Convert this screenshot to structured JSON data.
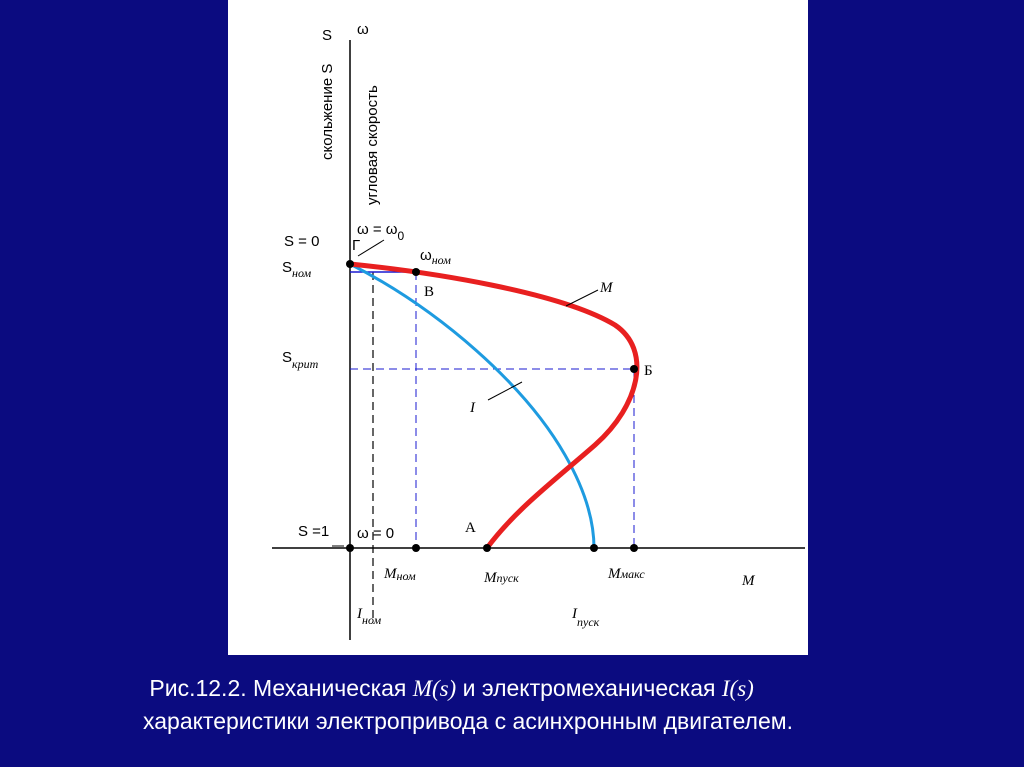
{
  "axes": {
    "s_axis": "S",
    "omega_axis": "ω",
    "s_axis_name": "скольжение S",
    "omega_axis_name": "угловая скорость",
    "m_axis": "M"
  },
  "labels": {
    "omega0": {
      "text": "ω = ω",
      "sub": "0"
    },
    "s0": "S = 0",
    "g": "Г",
    "omega_nom": {
      "text": "ω",
      "sub": "ном"
    },
    "s_nom": {
      "text": "S",
      "sub": "ном"
    },
    "v": "В",
    "curve_m": "M",
    "s_krit": {
      "text": "S",
      "sub": "крит"
    },
    "b": "Б",
    "curve_i": "I",
    "s1": "S =1",
    "omega_zero": "ω = 0",
    "a": "А",
    "m_nom": {
      "text": "M",
      "sub": "ном"
    },
    "m_pusk": {
      "text": "M",
      "sub": "пуск"
    },
    "m_maks": {
      "text": "M",
      "sub": "макс"
    },
    "i_nom": {
      "text": "I",
      "sub": "ном"
    },
    "i_pusk": {
      "text": "I",
      "sub": "пуск"
    }
  },
  "caption": {
    "line1": [
      "Рис.12.2. Механическая ",
      "M(s)",
      " и электромеханическая ",
      "I(s)"
    ],
    "line2": "характеристики электропривода с асинхронным двигателем."
  }
}
